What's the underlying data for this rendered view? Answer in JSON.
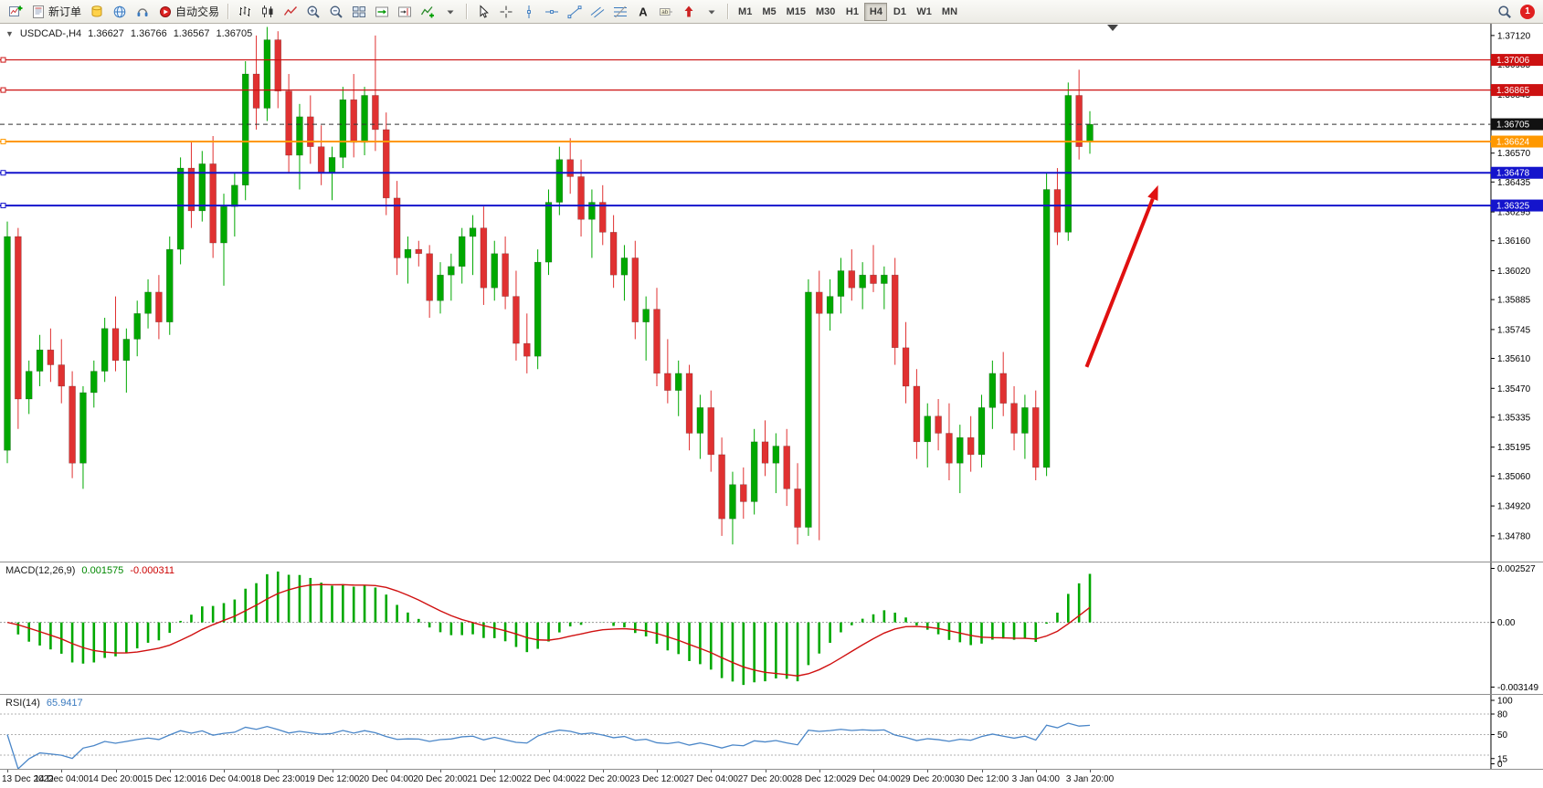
{
  "app": {
    "notification_count": "1"
  },
  "toolbar": {
    "groups": [
      [
        {
          "name": "new-chart-button",
          "icon": "chart-plus"
        },
        {
          "name": "new-order-button",
          "icon": "order-form",
          "label": "新订单"
        },
        {
          "name": "profiles-button",
          "icon": "cylinder"
        },
        {
          "name": "market-watch-button",
          "icon": "globe"
        },
        {
          "name": "support-button",
          "icon": "headset"
        },
        {
          "name": "auto-trading-button",
          "icon": "autotrade",
          "label": "自动交易"
        }
      ],
      [
        {
          "name": "bar-chart-button",
          "icon": "bars"
        },
        {
          "name": "candlestick-chart-button",
          "icon": "candles"
        },
        {
          "name": "line-chart-button",
          "icon": "linechart"
        },
        {
          "name": "zoom-in-button",
          "icon": "zoom-plus"
        },
        {
          "name": "zoom-out-button",
          "icon": "zoom-minus"
        },
        {
          "name": "tile-windows-button",
          "icon": "grid"
        },
        {
          "name": "auto-scroll-button",
          "icon": "autoscroll"
        },
        {
          "name": "chart-shift-button",
          "icon": "shift"
        },
        {
          "name": "indicators-button",
          "icon": "indicator-plus"
        },
        {
          "name": "indicators-dropdown",
          "icon": "caret-down"
        }
      ],
      [
        {
          "name": "cursor-tool-button",
          "icon": "cursor"
        },
        {
          "name": "crosshair-tool-button",
          "icon": "crosshair"
        },
        {
          "name": "vertical-line-tool-button",
          "icon": "vline"
        },
        {
          "name": "horizontal-line-tool-button",
          "icon": "hline"
        },
        {
          "name": "trendline-tool-button",
          "icon": "trend"
        },
        {
          "name": "channel-tool-button",
          "icon": "channel"
        },
        {
          "name": "fibonacci-tool-button",
          "icon": "fibo"
        },
        {
          "name": "text-tool-button",
          "icon": "textA"
        },
        {
          "name": "label-tool-button",
          "icon": "label"
        },
        {
          "name": "arrows-tool-button",
          "icon": "arrows"
        },
        {
          "name": "arrows-dropdown",
          "icon": "caret-down"
        }
      ]
    ],
    "timeframes": [
      "M1",
      "M5",
      "M15",
      "M30",
      "H1",
      "H4",
      "D1",
      "W1",
      "MN"
    ],
    "active_timeframe": "H4"
  },
  "chart_header": {
    "collapse_glyph": "▼",
    "symbol_period": "USDCAD-,H4",
    "open": "1.36627",
    "high": "1.36766",
    "low": "1.36567",
    "close": "1.36705"
  },
  "macd_header": {
    "name": "MACD(12,26,9)",
    "main_value": "0.001575",
    "signal_value": "-0.000311"
  },
  "rsi_header": {
    "name": "RSI(14)",
    "value": "65.9417"
  },
  "chart_data": [
    {
      "type": "candlestick",
      "title": "USDCAD H4",
      "ylim": [
        1.3466,
        1.37175
      ],
      "y_ticks": [
        1.3712,
        1.36985,
        1.36845,
        1.3671,
        1.3657,
        1.36435,
        1.36295,
        1.3616,
        1.3602,
        1.35885,
        1.35745,
        1.3561,
        1.3547,
        1.35335,
        1.35195,
        1.3506,
        1.3492,
        1.3478
      ],
      "x_labels": [
        "13 Dec 2022",
        "14 Dec 04:00",
        "14 Dec 20:00",
        "15 Dec 12:00",
        "16 Dec 04:00",
        "18 Dec 23:00",
        "19 Dec 12:00",
        "20 Dec 04:00",
        "20 Dec 20:00",
        "21 Dec 12:00",
        "22 Dec 04:00",
        "22 Dec 20:00",
        "23 Dec 12:00",
        "27 Dec 04:00",
        "27 Dec 20:00",
        "28 Dec 12:00",
        "29 Dec 04:00",
        "29 Dec 20:00",
        "30 Dec 12:00",
        "3 Jan 04:00",
        "3 Jan 20:00"
      ],
      "x_label_step": 5,
      "up_color": "#00a800",
      "down_color": "#e03131",
      "candles": [
        [
          1.3518,
          1.3625,
          1.3512,
          1.3618
        ],
        [
          1.3618,
          1.3622,
          1.3528,
          1.3542
        ],
        [
          1.3542,
          1.356,
          1.3535,
          1.3555
        ],
        [
          1.3555,
          1.3572,
          1.3548,
          1.3565
        ],
        [
          1.3565,
          1.3575,
          1.355,
          1.3558
        ],
        [
          1.3558,
          1.357,
          1.354,
          1.3548
        ],
        [
          1.3548,
          1.3555,
          1.3505,
          1.3512
        ],
        [
          1.3512,
          1.3548,
          1.35,
          1.3545
        ],
        [
          1.3545,
          1.356,
          1.3538,
          1.3555
        ],
        [
          1.3555,
          1.358,
          1.355,
          1.3575
        ],
        [
          1.3575,
          1.359,
          1.3555,
          1.356
        ],
        [
          1.356,
          1.3575,
          1.3545,
          1.357
        ],
        [
          1.357,
          1.3588,
          1.3562,
          1.3582
        ],
        [
          1.3582,
          1.3598,
          1.3575,
          1.3592
        ],
        [
          1.3592,
          1.36,
          1.357,
          1.3578
        ],
        [
          1.3578,
          1.3618,
          1.3572,
          1.3612
        ],
        [
          1.3612,
          1.3655,
          1.3605,
          1.365
        ],
        [
          1.365,
          1.3662,
          1.3622,
          1.363
        ],
        [
          1.363,
          1.3658,
          1.3625,
          1.3652
        ],
        [
          1.3652,
          1.3665,
          1.3608,
          1.3615
        ],
        [
          1.3615,
          1.3638,
          1.3595,
          1.3632
        ],
        [
          1.3632,
          1.3648,
          1.3618,
          1.3642
        ],
        [
          1.3642,
          1.37,
          1.3635,
          1.3694
        ],
        [
          1.3694,
          1.3712,
          1.3668,
          1.3678
        ],
        [
          1.3678,
          1.3716,
          1.3672,
          1.371
        ],
        [
          1.371,
          1.3714,
          1.3678,
          1.3686
        ],
        [
          1.3686,
          1.3694,
          1.3648,
          1.3656
        ],
        [
          1.3656,
          1.368,
          1.364,
          1.3674
        ],
        [
          1.3674,
          1.3684,
          1.3652,
          1.366
        ],
        [
          1.366,
          1.367,
          1.3642,
          1.3648
        ],
        [
          1.3648,
          1.366,
          1.3635,
          1.3655
        ],
        [
          1.3655,
          1.3688,
          1.365,
          1.3682
        ],
        [
          1.3682,
          1.3694,
          1.3655,
          1.3662
        ],
        [
          1.3662,
          1.3688,
          1.3656,
          1.3684
        ],
        [
          1.3684,
          1.3712,
          1.3658,
          1.3668
        ],
        [
          1.3668,
          1.3676,
          1.3628,
          1.3636
        ],
        [
          1.3636,
          1.3644,
          1.36,
          1.3608
        ],
        [
          1.3608,
          1.3618,
          1.3596,
          1.3612
        ],
        [
          1.3612,
          1.3616,
          1.3604,
          1.361
        ],
        [
          1.361,
          1.3614,
          1.358,
          1.3588
        ],
        [
          1.3588,
          1.3606,
          1.3582,
          1.36
        ],
        [
          1.36,
          1.361,
          1.3588,
          1.3604
        ],
        [
          1.3604,
          1.3622,
          1.3596,
          1.3618
        ],
        [
          1.3618,
          1.3628,
          1.36,
          1.3622
        ],
        [
          1.3622,
          1.3632,
          1.3586,
          1.3594
        ],
        [
          1.3594,
          1.3616,
          1.3588,
          1.361
        ],
        [
          1.361,
          1.3618,
          1.3584,
          1.359
        ],
        [
          1.359,
          1.3602,
          1.356,
          1.3568
        ],
        [
          1.3568,
          1.3582,
          1.3554,
          1.3562
        ],
        [
          1.3562,
          1.3612,
          1.3556,
          1.3606
        ],
        [
          1.3606,
          1.364,
          1.36,
          1.3634
        ],
        [
          1.3634,
          1.366,
          1.3628,
          1.3654
        ],
        [
          1.3654,
          1.3664,
          1.3638,
          1.3646
        ],
        [
          1.3646,
          1.3654,
          1.3618,
          1.3626
        ],
        [
          1.3626,
          1.364,
          1.3608,
          1.3634
        ],
        [
          1.3634,
          1.3642,
          1.3614,
          1.362
        ],
        [
          1.362,
          1.3628,
          1.3594,
          1.36
        ],
        [
          1.36,
          1.3614,
          1.3588,
          1.3608
        ],
        [
          1.3608,
          1.3616,
          1.357,
          1.3578
        ],
        [
          1.3578,
          1.359,
          1.356,
          1.3584
        ],
        [
          1.3584,
          1.3594,
          1.3548,
          1.3554
        ],
        [
          1.3554,
          1.357,
          1.354,
          1.3546
        ],
        [
          1.3546,
          1.356,
          1.3534,
          1.3554
        ],
        [
          1.3554,
          1.3558,
          1.3518,
          1.3526
        ],
        [
          1.3526,
          1.3544,
          1.3514,
          1.3538
        ],
        [
          1.3538,
          1.3546,
          1.3508,
          1.3516
        ],
        [
          1.3516,
          1.3524,
          1.3478,
          1.3486
        ],
        [
          1.3486,
          1.3508,
          1.3474,
          1.3502
        ],
        [
          1.3502,
          1.351,
          1.3486,
          1.3494
        ],
        [
          1.3494,
          1.3528,
          1.3488,
          1.3522
        ],
        [
          1.3522,
          1.3532,
          1.3506,
          1.3512
        ],
        [
          1.3512,
          1.3526,
          1.3498,
          1.352
        ],
        [
          1.352,
          1.3528,
          1.3492,
          1.35
        ],
        [
          1.35,
          1.3512,
          1.3474,
          1.3482
        ],
        [
          1.3482,
          1.3598,
          1.3478,
          1.3592
        ],
        [
          1.3592,
          1.3602,
          1.3476,
          1.3582
        ],
        [
          1.3582,
          1.3598,
          1.3574,
          1.359
        ],
        [
          1.359,
          1.3608,
          1.3582,
          1.3602
        ],
        [
          1.3602,
          1.3612,
          1.3588,
          1.3594
        ],
        [
          1.3594,
          1.3606,
          1.3584,
          1.36
        ],
        [
          1.36,
          1.3614,
          1.3592,
          1.3596
        ],
        [
          1.3596,
          1.3604,
          1.3584,
          1.36
        ],
        [
          1.36,
          1.3608,
          1.3558,
          1.3566
        ],
        [
          1.3566,
          1.3578,
          1.354,
          1.3548
        ],
        [
          1.3548,
          1.3556,
          1.3514,
          1.3522
        ],
        [
          1.3522,
          1.354,
          1.351,
          1.3534
        ],
        [
          1.3534,
          1.3542,
          1.3518,
          1.3526
        ],
        [
          1.3526,
          1.354,
          1.3504,
          1.3512
        ],
        [
          1.3512,
          1.353,
          1.3498,
          1.3524
        ],
        [
          1.3524,
          1.3534,
          1.3508,
          1.3516
        ],
        [
          1.3516,
          1.3544,
          1.351,
          1.3538
        ],
        [
          1.3538,
          1.356,
          1.3528,
          1.3554
        ],
        [
          1.3554,
          1.3564,
          1.3534,
          1.354
        ],
        [
          1.354,
          1.3548,
          1.3518,
          1.3526
        ],
        [
          1.3526,
          1.3544,
          1.3514,
          1.3538
        ],
        [
          1.3538,
          1.3546,
          1.3504,
          1.351
        ],
        [
          1.351,
          1.3648,
          1.3506,
          1.364
        ],
        [
          1.364,
          1.365,
          1.3614,
          1.362
        ],
        [
          1.362,
          1.369,
          1.3616,
          1.3684
        ],
        [
          1.3684,
          1.3696,
          1.3654,
          1.366
        ],
        [
          1.36627,
          1.36766,
          1.36567,
          1.36705
        ]
      ],
      "hlines": [
        {
          "name": "resistance-line-1",
          "price": 1.37006,
          "color": "#cc1111",
          "width": 1.2,
          "style": "solid",
          "label": "1.37006"
        },
        {
          "name": "resistance-line-2",
          "price": 1.36865,
          "color": "#cc1111",
          "width": 1.2,
          "style": "solid",
          "label": "1.36865"
        },
        {
          "name": "current-price-line",
          "price": 1.36705,
          "color": "#333333",
          "width": 1,
          "style": "dash",
          "label": "1.36705"
        },
        {
          "name": "pivot-line",
          "price": 1.36624,
          "color": "#ff9800",
          "width": 2,
          "style": "solid",
          "label": "1.36624"
        },
        {
          "name": "support-line-1",
          "price": 1.36478,
          "color": "#1414cc",
          "width": 2,
          "style": "solid",
          "label": "1.36478"
        },
        {
          "name": "support-line-2",
          "price": 1.36325,
          "color": "#1414cc",
          "width": 2,
          "style": "solid",
          "label": "1.36325"
        }
      ],
      "arrow": {
        "from_index": 99.7,
        "from_price": 1.3557,
        "to_index": 106.3,
        "to_price": 1.3642,
        "color": "#e01010"
      }
    },
    {
      "type": "macd",
      "params": [
        12,
        26,
        9
      ],
      "histogram_color": "#00a800",
      "signal_color": "#d01010",
      "y_tick_labels": [
        "0.002527",
        "0.00",
        "-0.003149"
      ]
    },
    {
      "type": "rsi",
      "period": 14,
      "line_color": "#4a86c8",
      "levels": [
        80,
        50,
        20
      ],
      "y_ticks": [
        100,
        80,
        50,
        15,
        0
      ]
    }
  ]
}
